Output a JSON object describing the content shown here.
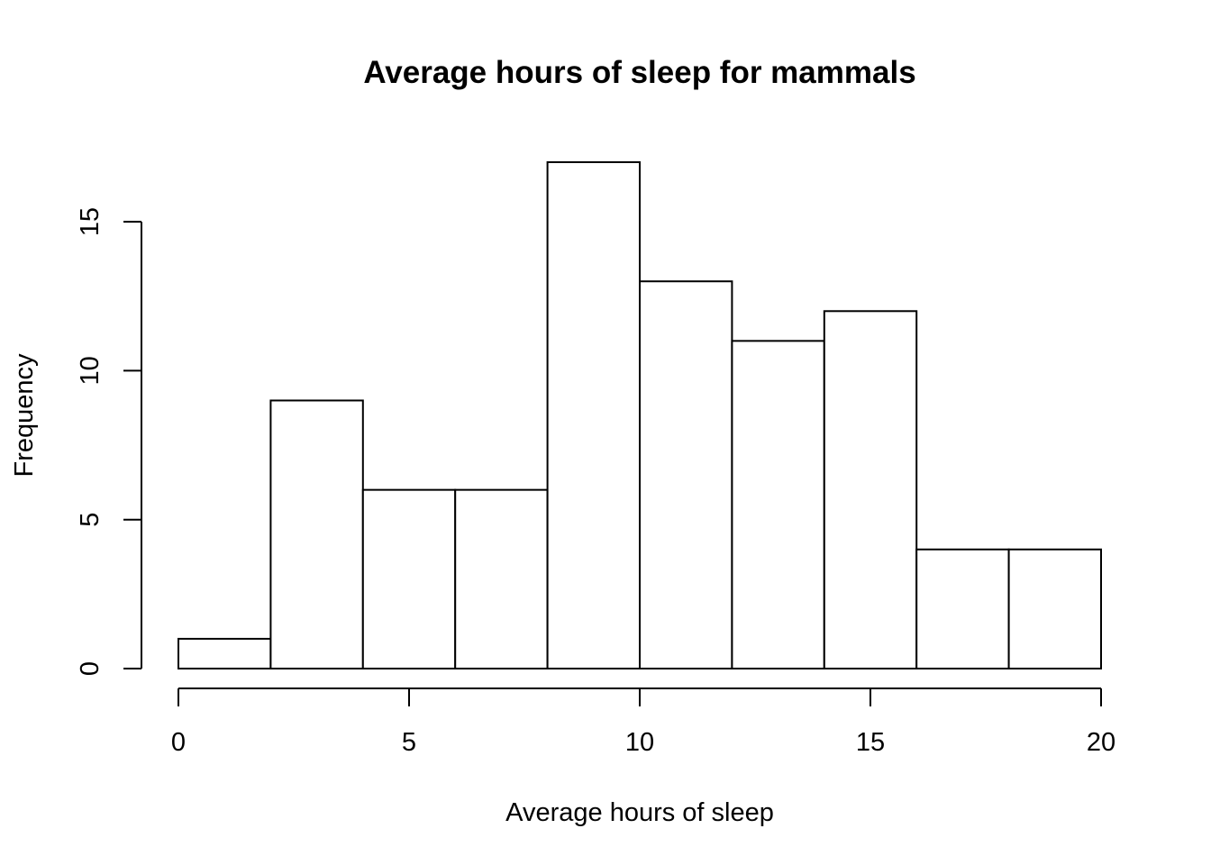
{
  "chart_data": {
    "type": "bar",
    "title": "Average hours of sleep for mammals",
    "xlabel": "Average hours of sleep",
    "ylabel": "Frequency",
    "bin_edges": [
      0,
      2,
      4,
      6,
      8,
      10,
      12,
      14,
      16,
      18,
      20
    ],
    "values": [
      1,
      9,
      6,
      6,
      17,
      13,
      11,
      12,
      4,
      4
    ],
    "xlim": [
      0,
      20
    ],
    "ylim": [
      0,
      17
    ],
    "x_ticks": [
      0,
      5,
      10,
      15,
      20
    ],
    "y_ticks": [
      0,
      5,
      10,
      15
    ],
    "grid": false,
    "legend": "none",
    "bar_fill": "#ffffff",
    "bar_stroke": "#000000"
  }
}
